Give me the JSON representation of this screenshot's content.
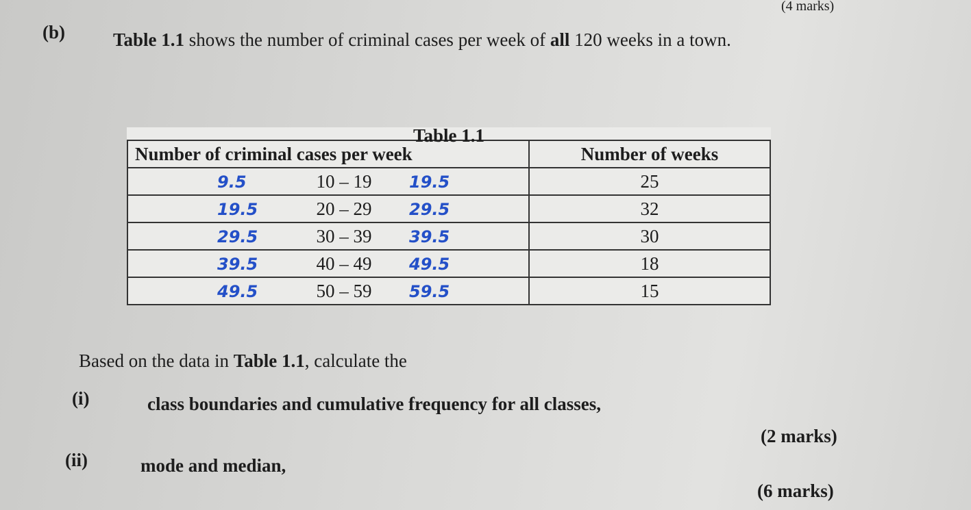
{
  "top_marks": "(4 marks)",
  "question": {
    "label": "(b)",
    "parts": [
      {
        "text": "Table 1.1",
        "bold": true
      },
      {
        "text": "shows the number of criminal cases per week of",
        "bold": false
      },
      {
        "text": "all",
        "bold": true
      },
      {
        "text": "120 weeks in a town.",
        "bold": false
      }
    ]
  },
  "table": {
    "caption": "Table 1.1",
    "headers": [
      "Number of criminal cases per week",
      "Number of weeks"
    ],
    "rows": [
      {
        "lower": "9.5",
        "class": "10 – 19",
        "upper": "19.5",
        "weeks": "25"
      },
      {
        "lower": "19.5",
        "class": "20 – 29",
        "upper": "29.5",
        "weeks": "32"
      },
      {
        "lower": "29.5",
        "class": "30 – 39",
        "upper": "39.5",
        "weeks": "30"
      },
      {
        "lower": "39.5",
        "class": "40 – 49",
        "upper": "49.5",
        "weeks": "18"
      },
      {
        "lower": "49.5",
        "class": "50 – 59",
        "upper": "59.5",
        "weeks": "15"
      }
    ]
  },
  "instruction": {
    "parts": [
      {
        "text": "Based on the data in",
        "bold": false
      },
      {
        "text": "Table 1.1",
        "bold": true
      },
      {
        "text": ", calculate the",
        "bold": false
      }
    ]
  },
  "items": [
    {
      "label": "(i)",
      "text": "class boundaries and cumulative frequency for all classes,",
      "marks": "(2 marks)"
    },
    {
      "label": "(ii)",
      "text": "mode and median,",
      "marks": "(6 marks)"
    }
  ]
}
